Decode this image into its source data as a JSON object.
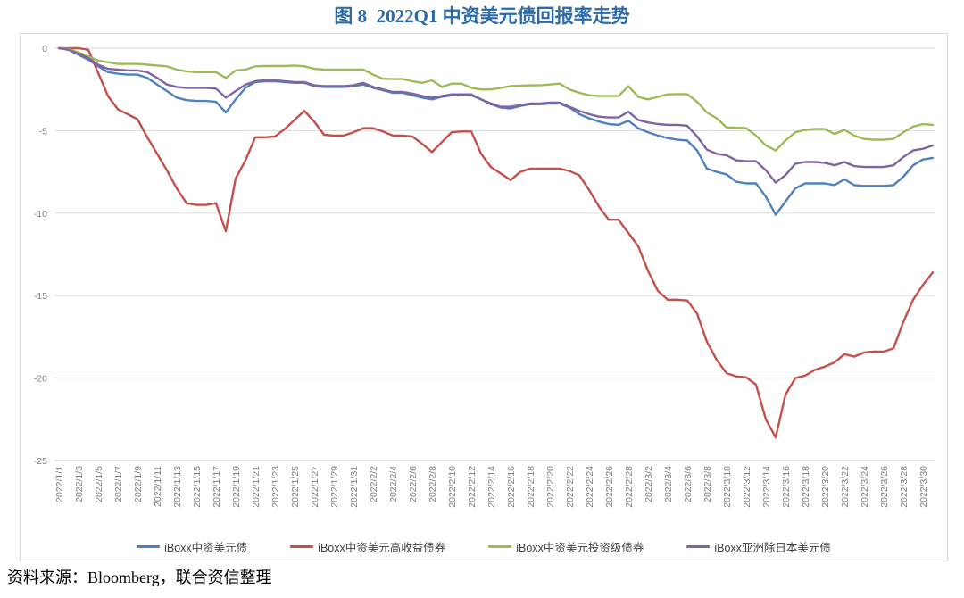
{
  "title": "图 8  2022Q1 中资美元债回报率走势",
  "source": "资料来源：Bloomberg，联合资信整理",
  "colors": {
    "title_blue": "#2C6BA8",
    "grid": "#D9D9D9",
    "axis_line": "#BFBFBF",
    "axis_text": "#7F7F7F",
    "legend_text": "#3F3F3F",
    "series_blue": "#4F81BD",
    "series_red": "#C3504B",
    "series_green": "#9BBB59",
    "series_purple": "#8064A2"
  },
  "chart_data": {
    "type": "line",
    "title": "图 8  2022Q1 中资美元债回报率走势",
    "xlabel": "",
    "ylabel": "",
    "ylim": [
      -25,
      0
    ],
    "yticks": [
      0,
      -5,
      -10,
      -15,
      -20,
      -25
    ],
    "grid": true,
    "legend_position": "bottom",
    "x_tick_every": 2,
    "x": [
      "2022/1/1",
      "2022/1/2",
      "2022/1/3",
      "2022/1/4",
      "2022/1/5",
      "2022/1/6",
      "2022/1/7",
      "2022/1/8",
      "2022/1/9",
      "2022/1/10",
      "2022/1/11",
      "2022/1/12",
      "2022/1/13",
      "2022/1/14",
      "2022/1/15",
      "2022/1/16",
      "2022/1/17",
      "2022/1/18",
      "2022/1/19",
      "2022/1/20",
      "2022/1/21",
      "2022/1/22",
      "2022/1/23",
      "2022/1/24",
      "2022/1/25",
      "2022/1/26",
      "2022/1/27",
      "2022/1/28",
      "2022/1/29",
      "2022/1/30",
      "2022/1/31",
      "2022/2/1",
      "2022/2/2",
      "2022/2/3",
      "2022/2/4",
      "2022/2/5",
      "2022/2/6",
      "2022/2/7",
      "2022/2/8",
      "2022/2/9",
      "2022/2/10",
      "2022/2/11",
      "2022/2/12",
      "2022/2/13",
      "2022/2/14",
      "2022/2/15",
      "2022/2/16",
      "2022/2/17",
      "2022/2/18",
      "2022/2/19",
      "2022/2/20",
      "2022/2/21",
      "2022/2/22",
      "2022/2/23",
      "2022/2/24",
      "2022/2/25",
      "2022/2/26",
      "2022/2/27",
      "2022/2/28",
      "2022/3/1",
      "2022/3/2",
      "2022/3/3",
      "2022/3/4",
      "2022/3/5",
      "2022/3/6",
      "2022/3/7",
      "2022/3/8",
      "2022/3/9",
      "2022/3/10",
      "2022/3/11",
      "2022/3/12",
      "2022/3/13",
      "2022/3/14",
      "2022/3/15",
      "2022/3/16",
      "2022/3/17",
      "2022/3/18",
      "2022/3/19",
      "2022/3/20",
      "2022/3/21",
      "2022/3/22",
      "2022/3/23",
      "2022/3/24",
      "2022/3/25",
      "2022/3/26",
      "2022/3/27",
      "2022/3/28",
      "2022/3/29",
      "2022/3/30",
      "2022/3/31"
    ],
    "series": [
      {
        "name": "iBoxx中资美元债",
        "color": "#4F81BD",
        "values": [
          0,
          -0.1,
          -0.4,
          -0.7,
          -1.1,
          -1.45,
          -1.55,
          -1.6,
          -1.6,
          -1.8,
          -2.2,
          -2.6,
          -3.0,
          -3.15,
          -3.2,
          -3.2,
          -3.25,
          -3.9,
          -3.1,
          -2.4,
          -2.05,
          -2.0,
          -2.0,
          -2.05,
          -2.1,
          -2.1,
          -2.3,
          -2.35,
          -2.35,
          -2.35,
          -2.3,
          -2.2,
          -2.4,
          -2.55,
          -2.7,
          -2.7,
          -2.85,
          -3.0,
          -3.1,
          -2.95,
          -2.85,
          -2.8,
          -2.85,
          -3.1,
          -3.4,
          -3.6,
          -3.65,
          -3.5,
          -3.4,
          -3.4,
          -3.35,
          -3.35,
          -3.6,
          -4.0,
          -4.25,
          -4.45,
          -4.6,
          -4.65,
          -4.4,
          -4.85,
          -5.1,
          -5.3,
          -5.45,
          -5.55,
          -5.6,
          -6.2,
          -7.3,
          -7.5,
          -7.65,
          -8.1,
          -8.2,
          -8.2,
          -9.0,
          -10.1,
          -9.3,
          -8.5,
          -8.2,
          -8.2,
          -8.2,
          -8.3,
          -7.95,
          -8.3,
          -8.35,
          -8.35,
          -8.35,
          -8.3,
          -7.8,
          -7.1,
          -6.75,
          -6.65
        ]
      },
      {
        "name": "iBoxx中资美元高收益债券",
        "color": "#C3504B",
        "values": [
          0,
          0,
          0,
          -0.1,
          -1.5,
          -2.9,
          -3.7,
          -4.0,
          -4.3,
          -5.4,
          -6.4,
          -7.4,
          -8.5,
          -9.4,
          -9.5,
          -9.5,
          -9.4,
          -11.1,
          -7.9,
          -6.8,
          -5.4,
          -5.4,
          -5.35,
          -4.9,
          -4.35,
          -3.8,
          -4.45,
          -5.25,
          -5.3,
          -5.3,
          -5.1,
          -4.85,
          -4.85,
          -5.05,
          -5.3,
          -5.3,
          -5.35,
          -5.8,
          -6.3,
          -5.7,
          -5.1,
          -5.05,
          -5.05,
          -6.4,
          -7.2,
          -7.6,
          -8.0,
          -7.5,
          -7.3,
          -7.3,
          -7.3,
          -7.3,
          -7.45,
          -7.7,
          -8.6,
          -9.6,
          -10.4,
          -10.4,
          -11.2,
          -12.0,
          -13.5,
          -14.7,
          -15.25,
          -15.25,
          -15.3,
          -16.1,
          -17.8,
          -18.9,
          -19.7,
          -19.9,
          -19.95,
          -20.4,
          -22.5,
          -23.6,
          -21.0,
          -20.0,
          -19.85,
          -19.5,
          -19.3,
          -19.05,
          -18.55,
          -18.7,
          -18.45,
          -18.4,
          -18.4,
          -18.2,
          -16.6,
          -15.25,
          -14.35,
          -13.6
        ]
      },
      {
        "name": "iBoxx中资美元投资级债券",
        "color": "#9BBB59",
        "values": [
          0,
          -0.05,
          -0.25,
          -0.5,
          -0.75,
          -0.85,
          -0.95,
          -0.95,
          -0.95,
          -1.0,
          -1.05,
          -1.1,
          -1.3,
          -1.4,
          -1.45,
          -1.45,
          -1.45,
          -1.8,
          -1.35,
          -1.3,
          -1.1,
          -1.08,
          -1.08,
          -1.08,
          -1.05,
          -1.1,
          -1.25,
          -1.3,
          -1.3,
          -1.3,
          -1.3,
          -1.3,
          -1.6,
          -1.85,
          -1.87,
          -1.87,
          -2.0,
          -2.1,
          -1.95,
          -2.35,
          -2.15,
          -2.15,
          -2.4,
          -2.5,
          -2.5,
          -2.4,
          -2.3,
          -2.28,
          -2.25,
          -2.25,
          -2.2,
          -2.15,
          -2.5,
          -2.7,
          -2.85,
          -2.9,
          -2.9,
          -2.9,
          -2.3,
          -2.95,
          -3.1,
          -2.95,
          -2.8,
          -2.78,
          -2.78,
          -3.25,
          -3.9,
          -4.25,
          -4.8,
          -4.82,
          -4.85,
          -5.3,
          -5.9,
          -6.2,
          -5.6,
          -5.1,
          -4.95,
          -4.9,
          -4.9,
          -5.2,
          -4.95,
          -5.3,
          -5.5,
          -5.55,
          -5.55,
          -5.5,
          -5.1,
          -4.75,
          -4.6,
          -4.65
        ]
      },
      {
        "name": "iBoxx亚洲除日本美元债",
        "color": "#8064A2",
        "values": [
          0,
          -0.1,
          -0.35,
          -0.6,
          -1.0,
          -1.25,
          -1.3,
          -1.35,
          -1.35,
          -1.45,
          -1.8,
          -2.2,
          -2.35,
          -2.4,
          -2.4,
          -2.4,
          -2.45,
          -3.0,
          -2.6,
          -2.2,
          -2.0,
          -1.95,
          -1.95,
          -2.0,
          -2.05,
          -2.05,
          -2.25,
          -2.3,
          -2.3,
          -2.3,
          -2.25,
          -2.1,
          -2.35,
          -2.5,
          -2.65,
          -2.65,
          -2.75,
          -2.9,
          -3.0,
          -2.9,
          -2.8,
          -2.8,
          -2.8,
          -3.1,
          -3.35,
          -3.55,
          -3.55,
          -3.45,
          -3.35,
          -3.35,
          -3.3,
          -3.3,
          -3.55,
          -3.8,
          -4.0,
          -4.15,
          -4.2,
          -4.2,
          -3.85,
          -4.35,
          -4.5,
          -4.6,
          -4.65,
          -4.65,
          -4.7,
          -5.35,
          -6.15,
          -6.4,
          -6.5,
          -6.8,
          -6.85,
          -6.85,
          -7.4,
          -8.15,
          -7.7,
          -7.0,
          -6.9,
          -6.9,
          -6.95,
          -7.1,
          -6.9,
          -7.15,
          -7.2,
          -7.2,
          -7.2,
          -7.1,
          -6.6,
          -6.2,
          -6.1,
          -5.9
        ]
      }
    ]
  }
}
